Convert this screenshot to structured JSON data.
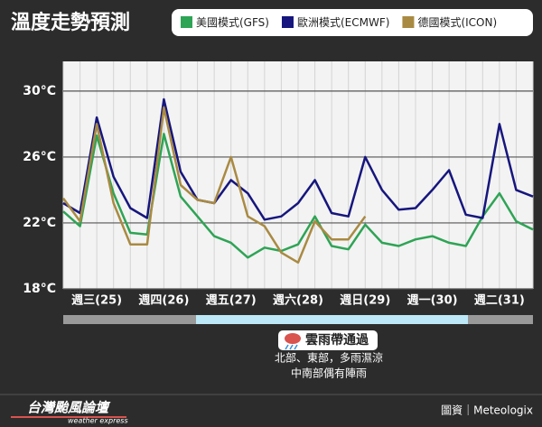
{
  "chart_data": {
    "type": "line",
    "title": "溫度走勢預測",
    "categories": [
      "週三(25)",
      "週四(26)",
      "週五(27)",
      "週六(28)",
      "週日(29)",
      "週一(30)",
      "週二(31)"
    ],
    "x": [
      0,
      6,
      12,
      18,
      24,
      30,
      36,
      42,
      48,
      54,
      60,
      66,
      72,
      78,
      84,
      90,
      96,
      102,
      108,
      114,
      120,
      126,
      132,
      138,
      144,
      150,
      156,
      162,
      168
    ],
    "xlim": [
      0,
      168
    ],
    "ylim": [
      18,
      31.8
    ],
    "yticks": [
      {
        "value": 18,
        "label": "18°C"
      },
      {
        "value": 22,
        "label": "22°C"
      },
      {
        "value": 26,
        "label": "26°C"
      },
      {
        "value": 30,
        "label": "30°C"
      }
    ],
    "grid": true,
    "series": [
      {
        "name": "美國模式(GFS)",
        "color": "#2ea455",
        "values": [
          22.7,
          21.8,
          27.3,
          23.8,
          21.4,
          21.3,
          27.4,
          23.6,
          22.4,
          21.2,
          20.8,
          19.9,
          20.5,
          20.3,
          20.7,
          22.4,
          20.6,
          20.4,
          21.9,
          20.8,
          20.6,
          21.0,
          21.2,
          20.8,
          20.6,
          22.4,
          23.8,
          22.1,
          21.6
        ]
      },
      {
        "name": "歐洲模式(ECMWF)",
        "color": "#16167e",
        "values": [
          23.2,
          22.6,
          28.4,
          24.8,
          22.9,
          22.3,
          29.5,
          25.1,
          23.4,
          23.2,
          24.6,
          23.8,
          22.2,
          22.4,
          23.2,
          24.6,
          22.6,
          22.4,
          26.0,
          24.0,
          22.8,
          22.9,
          24.0,
          25.2,
          22.5,
          22.3,
          28.0,
          24.0,
          23.6
        ]
      },
      {
        "name": "德國模式(ICON)",
        "color": "#a98a42",
        "values": [
          23.5,
          22.1,
          28.0,
          23.2,
          20.7,
          20.7,
          29.0,
          24.3,
          23.4,
          23.2,
          26.0,
          22.4,
          21.8,
          20.2,
          19.6,
          22.1,
          21.0,
          21.0,
          22.4,
          null,
          null,
          null,
          null,
          null,
          null,
          null,
          null,
          null,
          null
        ]
      }
    ],
    "annotations": [
      "雲雨帶通過",
      "北部、東部，多雨濕涼",
      "中南部偶有陣雨"
    ]
  },
  "footer": {
    "brand": "台灣颱風論壇",
    "brand_sub": "weather express",
    "source": "圖資｜Meteologix"
  }
}
